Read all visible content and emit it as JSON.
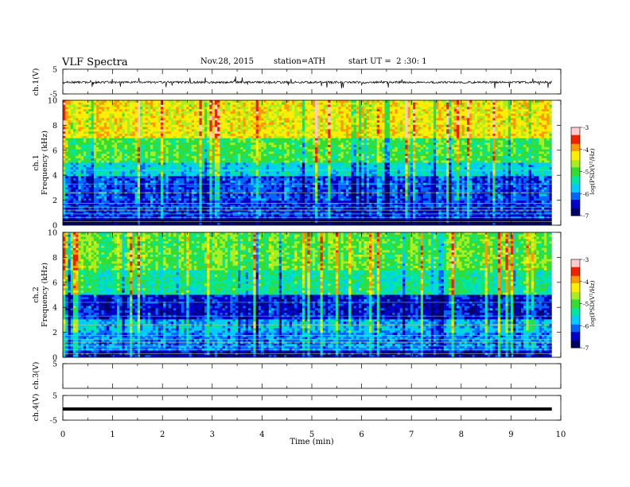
{
  "header": {
    "title": "VLF Spectra",
    "date": "Nov.28, 2015",
    "station": "station=ATH",
    "start_time": "start UT =  2 :30: 1"
  },
  "chart_data": [
    {
      "type": "line",
      "panel": "ch1-waveform",
      "ylabel": "ch.1(V)",
      "ylim": [
        -5,
        5
      ],
      "y_tick_labels": [
        "5",
        "-5"
      ],
      "xlim": [
        0,
        10
      ],
      "data_end_min": 9.82,
      "series": [
        {
          "values_description": "noisy signal around ~-0.3 V, spikes up to about ±2.5 V",
          "mean": -0.3,
          "noise_amplitude": 0.9,
          "spike_amplitude": 2.5
        }
      ]
    },
    {
      "type": "heatmap",
      "panel": "ch1-spectrogram",
      "ylabel": "Frequency (kHz)",
      "channel_label": "ch.1",
      "ylim": [
        0,
        10
      ],
      "y_tick_labels": [
        "0",
        "2",
        "4",
        "6",
        "8",
        "10"
      ],
      "xlim": [
        0,
        10
      ],
      "data_end_min": 9.82,
      "colorbar": {
        "label": "log(PSD(V²/Hz)",
        "range": [
          -7,
          -3
        ],
        "tick_labels": [
          "-3",
          "-4",
          "-5",
          "-6",
          "-7"
        ]
      },
      "frequency_profile_log_psd": {
        "0-0.5kHz": -7,
        "0.5-2kHz": -6.3,
        "2-4kHz": -6.2,
        "4-5kHz": -5.6,
        "5-7kHz": -5.0,
        "7-10kHz": -4.3
      }
    },
    {
      "type": "heatmap",
      "panel": "ch2-spectrogram",
      "ylabel": "Frequency (kHz)",
      "channel_label": "ch.2",
      "ylim": [
        0,
        10
      ],
      "y_tick_labels": [
        "0",
        "2",
        "4",
        "6",
        "8",
        "10"
      ],
      "xlim": [
        0,
        10
      ],
      "data_end_min": 9.82,
      "colorbar": {
        "label": "log(PSD(V²/Hz)",
        "range": [
          -7,
          -3
        ],
        "tick_labels": [
          "-3",
          "-4",
          "-5",
          "-6",
          "-7"
        ]
      },
      "frequency_profile_log_psd": {
        "0-0.5kHz": -6.5,
        "0.5-2kHz": -6.0,
        "2-3kHz": -5.8,
        "3-5kHz": -6.4,
        "5-7kHz": -5.3,
        "7-10kHz": -4.9
      }
    },
    {
      "type": "line",
      "panel": "ch3-waveform",
      "ylabel": "ch.3(V)",
      "ylim": [
        -5,
        5
      ],
      "y_tick_labels": [
        "5"
      ],
      "xlim": [
        0,
        10
      ],
      "series": [
        {
          "values_description": "empty",
          "mean": 0
        }
      ]
    },
    {
      "type": "line",
      "panel": "ch4-waveform",
      "ylabel": "ch.4(V)",
      "ylim": [
        -5,
        5
      ],
      "y_tick_labels": [
        "5",
        "-5"
      ],
      "xlim": [
        0,
        10
      ],
      "data_end_min": 9.82,
      "series": [
        {
          "values_description": "flat thick trace near -0.5 V",
          "mean": -0.5
        }
      ]
    }
  ],
  "x_axis": {
    "label": "Time (min)",
    "range": [
      0,
      10
    ],
    "tick_labels": [
      "0",
      "1",
      "2",
      "3",
      "4",
      "5",
      "6",
      "7",
      "8",
      "9",
      "10"
    ]
  },
  "colors": {
    "cmap": [
      "#000066",
      "#0000cc",
      "#0066ff",
      "#00ccff",
      "#00e8a0",
      "#33dd33",
      "#aaee22",
      "#ffee00",
      "#ff9900",
      "#ee2200",
      "#ffcccc"
    ]
  }
}
